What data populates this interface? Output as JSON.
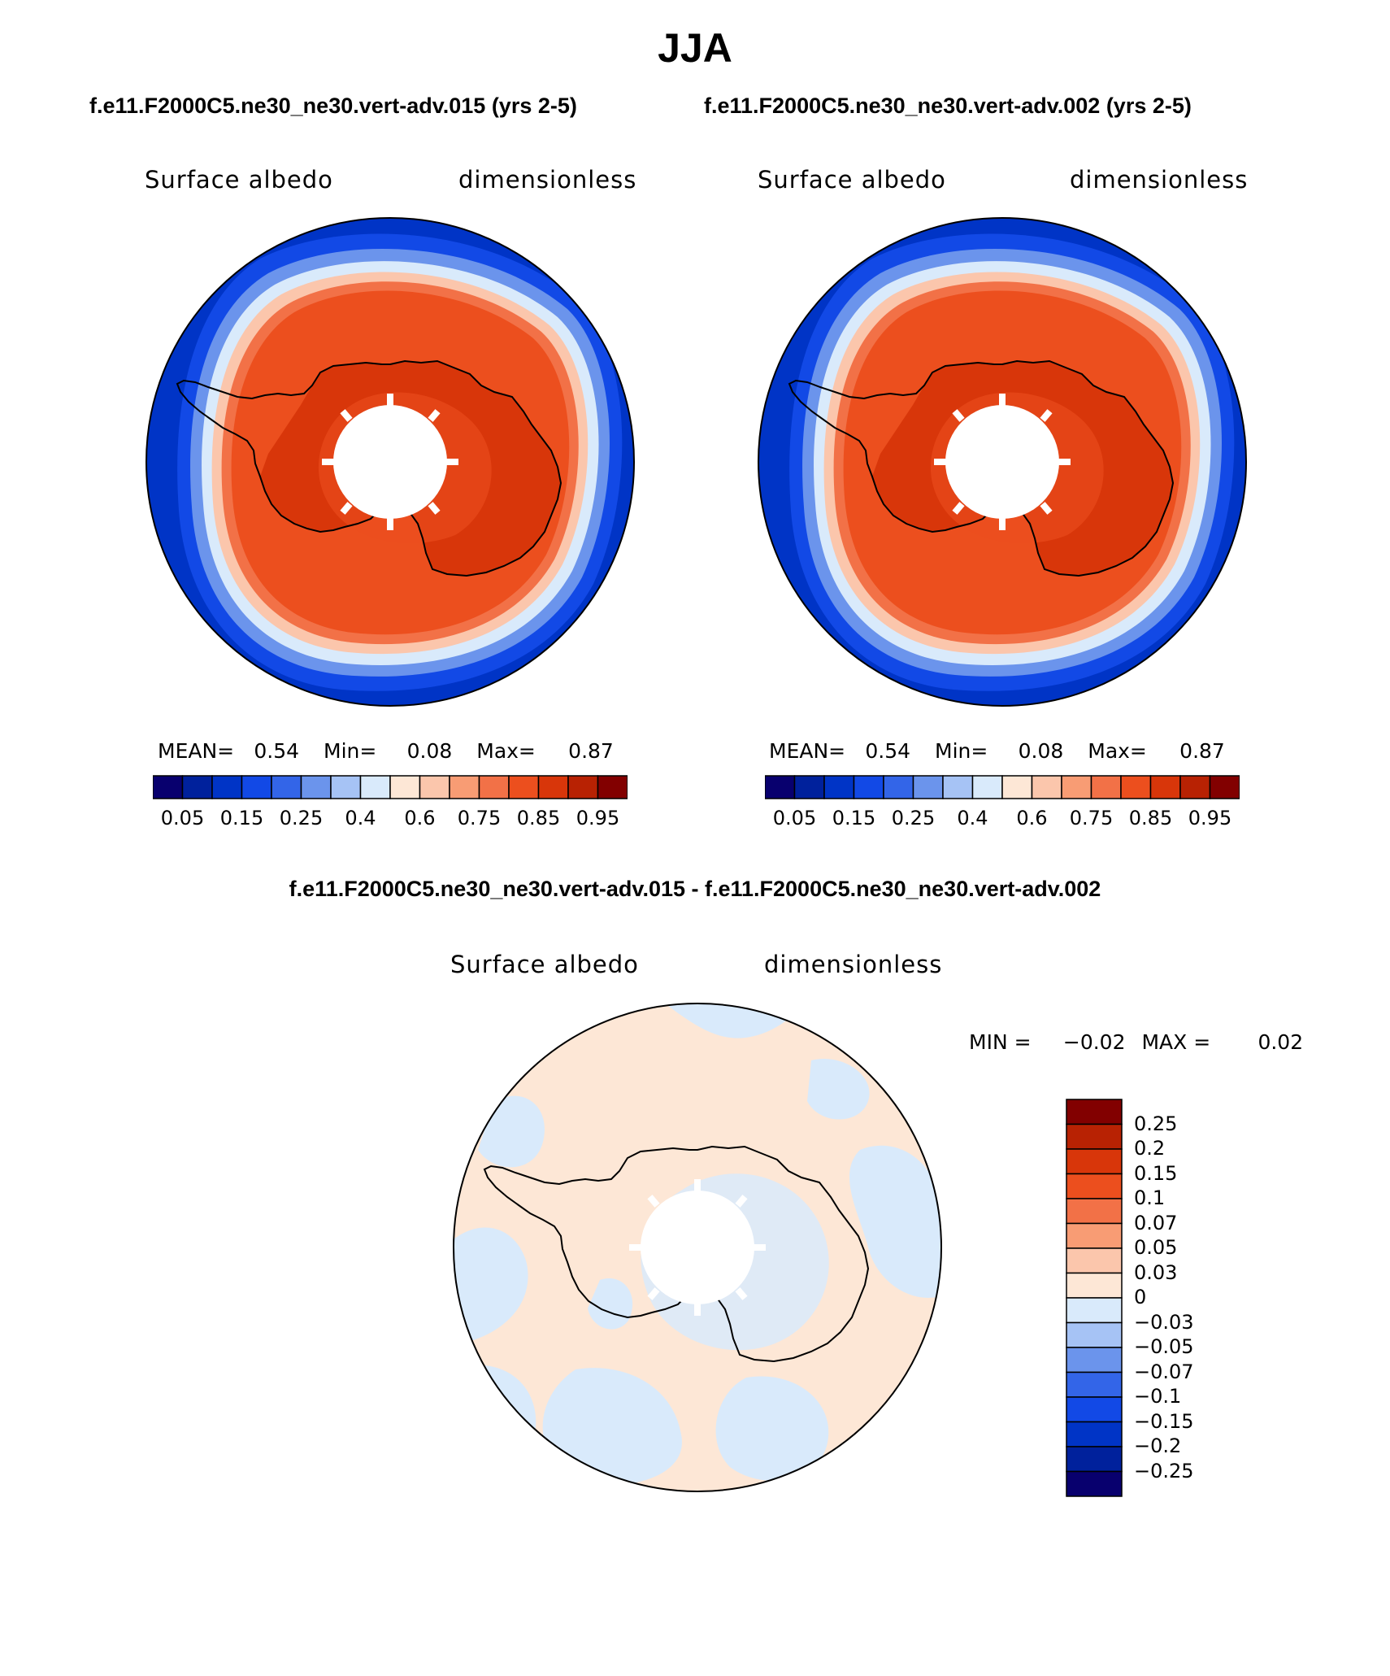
{
  "title": "JJA",
  "case_titles": {
    "left": "f.e11.F2000C5.ne30_ne30.vert-adv.015 (yrs 2-5)",
    "right": "f.e11.F2000C5.ne30_ne30.vert-adv.002 (yrs 2-5)",
    "diff": "f.e11.F2000C5.ne30_ne30.vert-adv.015 - f.e11.F2000C5.ne30_ne30.vert-adv.002"
  },
  "panels": {
    "left": {
      "variable": "Surface albedo",
      "units": "dimensionless",
      "stats": {
        "mean_label": "MEAN=",
        "mean": "0.54",
        "min_label": "Min=",
        "min": "0.08",
        "max_label": "Max=",
        "max": "0.87"
      }
    },
    "right": {
      "variable": "Surface albedo",
      "units": "dimensionless",
      "stats": {
        "mean_label": "MEAN=",
        "mean": "0.54",
        "min_label": "Min=",
        "min": "0.08",
        "max_label": "Max=",
        "max": "0.87"
      }
    },
    "diff": {
      "variable": "Surface albedo",
      "units": "dimensionless",
      "stats": {
        "min_label": "MIN =",
        "min": "−0.02",
        "max_label": "MAX =",
        "max": "0.02"
      }
    }
  },
  "colorbar_main": {
    "colors": [
      "#08006e",
      "#00219c",
      "#0034c6",
      "#1249e6",
      "#3365e8",
      "#6b94ec",
      "#a6c3f5",
      "#d9eafb",
      "#fde7d6",
      "#fbc6ac",
      "#f89c74",
      "#f27147",
      "#ec4f1e",
      "#d8360a",
      "#b82203",
      "#820000"
    ],
    "labels": [
      "0.05",
      "0.15",
      "0.25",
      "0.4",
      "0.6",
      "0.75",
      "0.85",
      "0.95"
    ]
  },
  "colorbar_diff": {
    "colors_top_to_bottom": [
      "#820000",
      "#b82203",
      "#d8360a",
      "#ec4f1e",
      "#f27147",
      "#f89c74",
      "#fbc6ac",
      "#fde7d6",
      "#d9eafb",
      "#a6c3f5",
      "#6b94ec",
      "#3365e8",
      "#1249e6",
      "#0034c6",
      "#00219c",
      "#08006e"
    ],
    "labels_top_to_bottom": [
      "0.25",
      "0.2",
      "0.15",
      "0.1",
      "0.07",
      "0.05",
      "0.03",
      "0",
      "−0.03",
      "−0.05",
      "−0.07",
      "−0.1",
      "−0.15",
      "−0.2",
      "−0.25"
    ]
  }
}
